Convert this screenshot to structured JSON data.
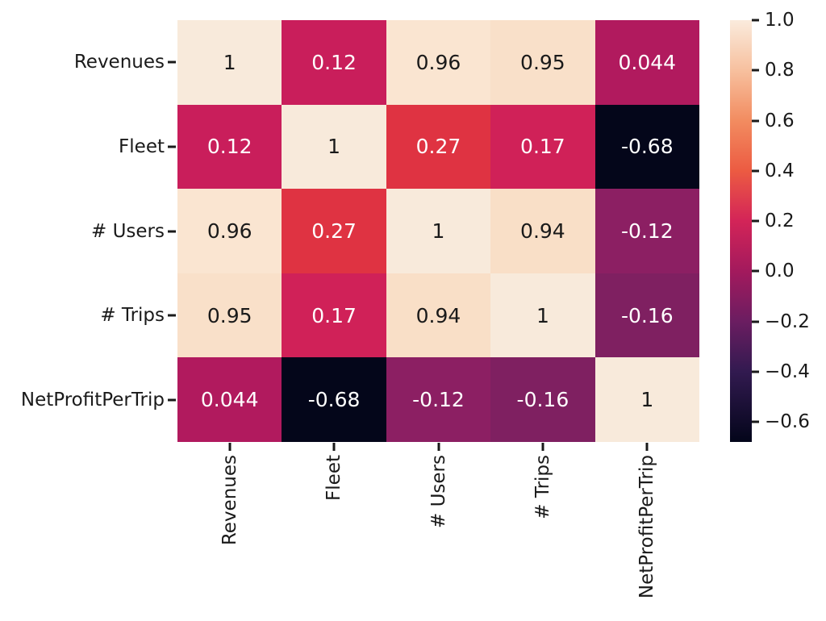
{
  "chart_data": {
    "type": "heatmap",
    "title": "",
    "xlabel": "",
    "ylabel": "",
    "categories": [
      "Revenues",
      "Fleet",
      "# Users",
      "# Trips",
      "NetProfitPerTrip"
    ],
    "matrix": [
      [
        "1",
        "0.12",
        "0.96",
        "0.95",
        "0.044"
      ],
      [
        "0.12",
        "1",
        "0.27",
        "0.17",
        "-0.68"
      ],
      [
        "0.96",
        "0.27",
        "1",
        "0.94",
        "-0.12"
      ],
      [
        "0.95",
        "0.17",
        "0.94",
        "1",
        "-0.16"
      ],
      [
        "0.044",
        "-0.68",
        "-0.12",
        "-0.16",
        "1"
      ]
    ],
    "values": [
      [
        1,
        0.12,
        0.96,
        0.95,
        0.044
      ],
      [
        0.12,
        1,
        0.27,
        0.17,
        -0.68
      ],
      [
        0.96,
        0.27,
        1,
        0.94,
        -0.12
      ],
      [
        0.95,
        0.17,
        0.94,
        1,
        -0.16
      ],
      [
        0.044,
        -0.68,
        -0.12,
        -0.16,
        1
      ]
    ],
    "cell_colors": [
      [
        "#f8eadb",
        "#c91e5b",
        "#fae5d1",
        "#f9e0c9",
        "#b11a5e"
      ],
      [
        "#c91e5b",
        "#f8eadb",
        "#df3342",
        "#d02158",
        "#04061a"
      ],
      [
        "#fae5d1",
        "#df3342",
        "#f8eadb",
        "#f9dfc7",
        "#8c1f63"
      ],
      [
        "#f9e0c9",
        "#d02158",
        "#f9dfc7",
        "#f8eadb",
        "#7f2061"
      ],
      [
        "#b11a5e",
        "#04061a",
        "#8c1f63",
        "#7f2061",
        "#f8eadb"
      ]
    ],
    "text_colors": [
      [
        "#1a1a1a",
        "#ffffff",
        "#1a1a1a",
        "#1a1a1a",
        "#ffffff"
      ],
      [
        "#ffffff",
        "#1a1a1a",
        "#ffffff",
        "#ffffff",
        "#ffffff"
      ],
      [
        "#1a1a1a",
        "#ffffff",
        "#1a1a1a",
        "#1a1a1a",
        "#ffffff"
      ],
      [
        "#1a1a1a",
        "#ffffff",
        "#1a1a1a",
        "#1a1a1a",
        "#ffffff"
      ],
      [
        "#ffffff",
        "#ffffff",
        "#ffffff",
        "#ffffff",
        "#1a1a1a"
      ]
    ],
    "colormap": "rocket",
    "grid": false,
    "legend_position": "colorbar-right",
    "colorbar": {
      "vmin": -0.68,
      "vmax": 1.0,
      "tick_labels": [
        "1.0",
        "0.8",
        "0.6",
        "0.4",
        "0.2",
        "0.0",
        "−0.2",
        "−0.4",
        "−0.6"
      ],
      "tick_values": [
        1.0,
        0.8,
        0.6,
        0.4,
        0.2,
        0.0,
        -0.2,
        -0.4,
        -0.6
      ],
      "gradient_stops": [
        {
          "pos": 0,
          "color": "#03051a"
        },
        {
          "pos": 16.7,
          "color": "#321a50"
        },
        {
          "pos": 28.6,
          "color": "#6b1d61"
        },
        {
          "pos": 40.5,
          "color": "#a31a5d"
        },
        {
          "pos": 52.4,
          "color": "#d32458"
        },
        {
          "pos": 64.3,
          "color": "#ec5b42"
        },
        {
          "pos": 76.2,
          "color": "#f28c60"
        },
        {
          "pos": 88.1,
          "color": "#f7c09e"
        },
        {
          "pos": 100,
          "color": "#faebdd"
        }
      ]
    }
  }
}
